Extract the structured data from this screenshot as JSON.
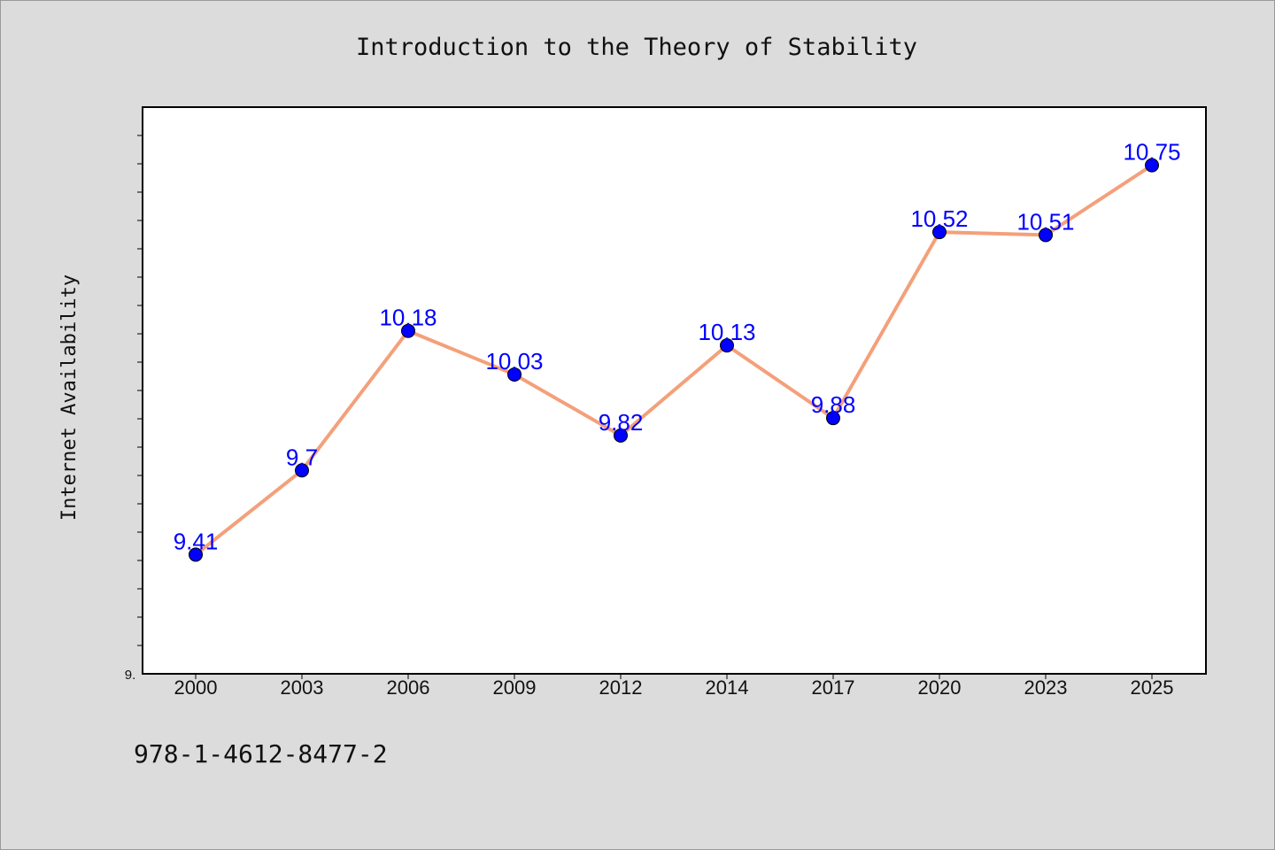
{
  "chart_data": {
    "type": "line",
    "title": "Introduction to the Theory of Stability",
    "ylabel": "Internet Availability",
    "xlabel": "",
    "categories": [
      "2000",
      "2003",
      "2006",
      "2009",
      "2012",
      "2014",
      "2017",
      "2020",
      "2023",
      "2025"
    ],
    "values": [
      9.41,
      9.7,
      10.18,
      10.03,
      9.82,
      10.13,
      9.88,
      10.52,
      10.51,
      10.75
    ],
    "data_labels": [
      "9.41",
      "9.7",
      "10.18",
      "10.03",
      "9.82",
      "10.13",
      "9.88",
      "10.52",
      "10.51",
      "10.75"
    ],
    "ylim": [
      9.0,
      10.95
    ],
    "ytick_label": "9.",
    "grid": false,
    "line_color": "#f4a07a",
    "marker_color": "#0000ff",
    "label_color": "#0000ff"
  },
  "footer": {
    "isbn": "978-1-4612-8477-2"
  }
}
